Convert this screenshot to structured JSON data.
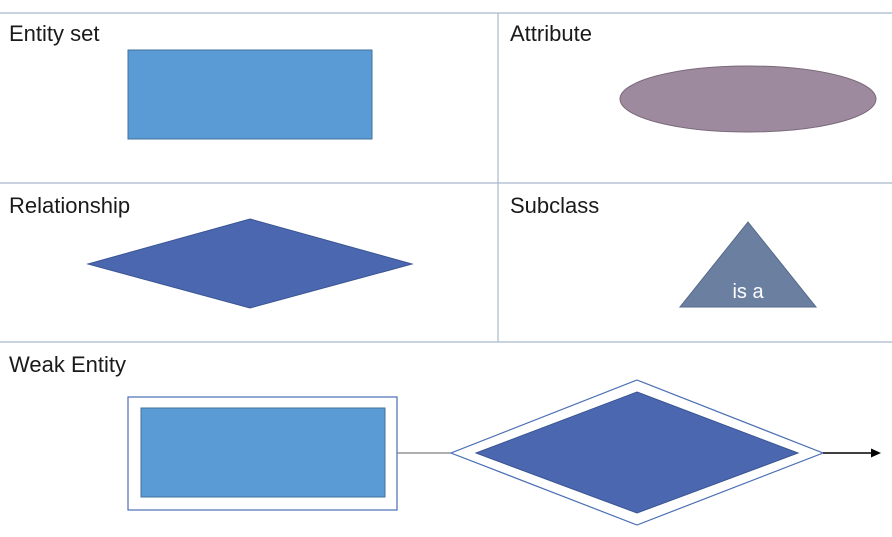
{
  "cells": {
    "entity_set": "Entity set",
    "attribute": "Attribute",
    "relationship": "Relationship",
    "subclass": "Subclass",
    "weak_entity": "Weak Entity"
  },
  "subclass_shape_text": "is a",
  "colors": {
    "grid_line": "#a9b9cc",
    "entity_fill": "#5b9bd5",
    "entity_stroke": "#41719c",
    "attribute_fill": "#9e8a9e",
    "attribute_stroke": "#7a6a7a",
    "relationship_fill": "#4a67b0",
    "relationship_stroke": "#3a5593",
    "subclass_fill": "#6b7fa0",
    "outline_stroke": "#4a6fb5",
    "connector": "#7f7f7f",
    "arrow": "#000000"
  }
}
